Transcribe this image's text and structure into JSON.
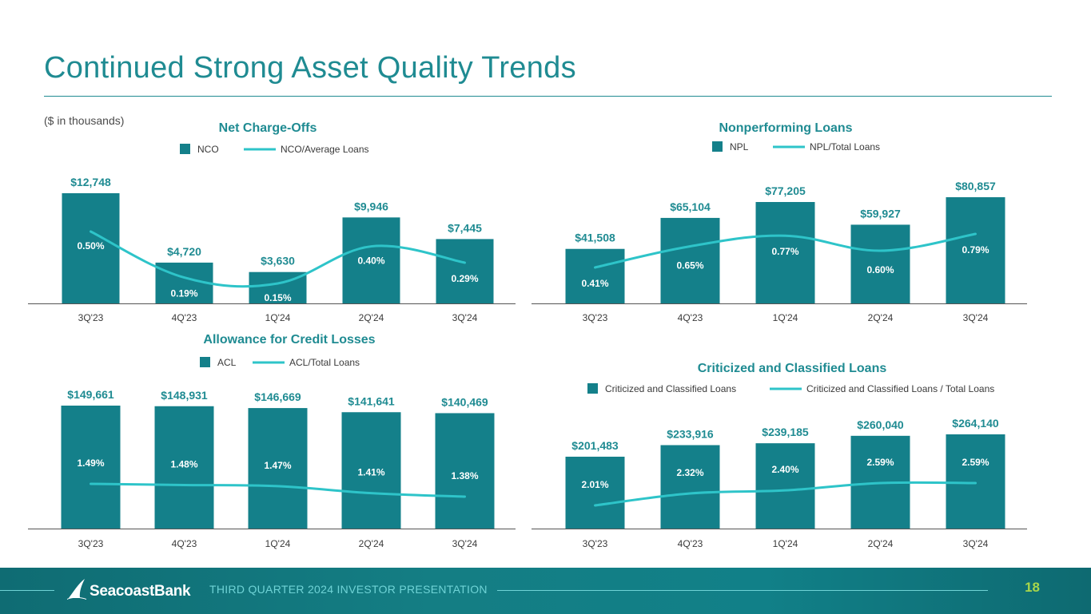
{
  "page": {
    "title": "Continued Strong Asset Quality Trends",
    "units_note": "($ in thousands)",
    "footer_text": "THIRD QUARTER 2024 INVESTOR PRESENTATION",
    "page_number": "18",
    "logo_text": "SeacoastBank"
  },
  "colors": {
    "title": "#1f8b92",
    "bar": "#14808a",
    "line": "#2ec4c9",
    "axis": "#555555",
    "footer": "#117a80",
    "page_number": "#a8d64a"
  },
  "chart_data": [
    {
      "id": "nco",
      "type": "bar",
      "title": "Net Charge-Offs",
      "categories": [
        "3Q'23",
        "4Q'23",
        "1Q'24",
        "2Q'24",
        "3Q'24"
      ],
      "series": [
        {
          "name": "NCO",
          "values": [
            12748,
            4720,
            3630,
            9946,
            7445
          ],
          "labels": [
            "$12,748",
            "$4,720",
            "$3,630",
            "$9,946",
            "$7,445"
          ]
        },
        {
          "name": "NCO/Average Loans",
          "kind": "line",
          "values": [
            0.5,
            0.19,
            0.15,
            0.4,
            0.29
          ],
          "labels": [
            "0.50%",
            "0.19%",
            "0.15%",
            "0.40%",
            "0.29%"
          ]
        }
      ],
      "legend": "top-center"
    },
    {
      "id": "npl",
      "type": "bar",
      "title": "Nonperforming Loans",
      "categories": [
        "3Q'23",
        "4Q'23",
        "1Q'24",
        "2Q'24",
        "3Q'24"
      ],
      "series": [
        {
          "name": "NPL",
          "values": [
            41508,
            65104,
            77205,
            59927,
            80857
          ],
          "labels": [
            "$41,508",
            "$65,104",
            "$77,205",
            "$59,927",
            "$80,857"
          ]
        },
        {
          "name": "NPL/Total Loans",
          "kind": "line",
          "values": [
            0.41,
            0.65,
            0.77,
            0.6,
            0.79
          ],
          "labels": [
            "0.41%",
            "0.65%",
            "0.77%",
            "0.60%",
            "0.79%"
          ]
        }
      ],
      "legend": "top-center"
    },
    {
      "id": "acl",
      "type": "bar",
      "title": "Allowance for Credit Losses",
      "categories": [
        "3Q'23",
        "4Q'23",
        "1Q'24",
        "2Q'24",
        "3Q'24"
      ],
      "series": [
        {
          "name": "ACL",
          "values": [
            149661,
            148931,
            146669,
            141641,
            140469
          ],
          "labels": [
            "$149,661",
            "$148,931",
            "$146,669",
            "$141,641",
            "$140,469"
          ]
        },
        {
          "name": "ACL/Total Loans",
          "kind": "line",
          "values": [
            1.49,
            1.48,
            1.47,
            1.41,
            1.38
          ],
          "labels": [
            "1.49%",
            "1.48%",
            "1.47%",
            "1.41%",
            "1.38%"
          ]
        }
      ],
      "legend": "top-center"
    },
    {
      "id": "cc",
      "type": "bar",
      "title": "Criticized and Classified Loans",
      "categories": [
        "3Q'23",
        "4Q'23",
        "1Q'24",
        "2Q'24",
        "3Q'24"
      ],
      "series": [
        {
          "name": "Criticized and Classified Loans",
          "values": [
            201483,
            233916,
            239185,
            260040,
            264140
          ],
          "labels": [
            "$201,483",
            "$233,916",
            "$239,185",
            "$260,040",
            "$264,140"
          ]
        },
        {
          "name": "Criticized and Classified Loans  / Total Loans",
          "kind": "line",
          "values": [
            2.01,
            2.32,
            2.4,
            2.59,
            2.59
          ],
          "labels": [
            "2.01%",
            "2.32%",
            "2.40%",
            "2.59%",
            "2.59%"
          ]
        }
      ],
      "legend": "top-center"
    }
  ]
}
